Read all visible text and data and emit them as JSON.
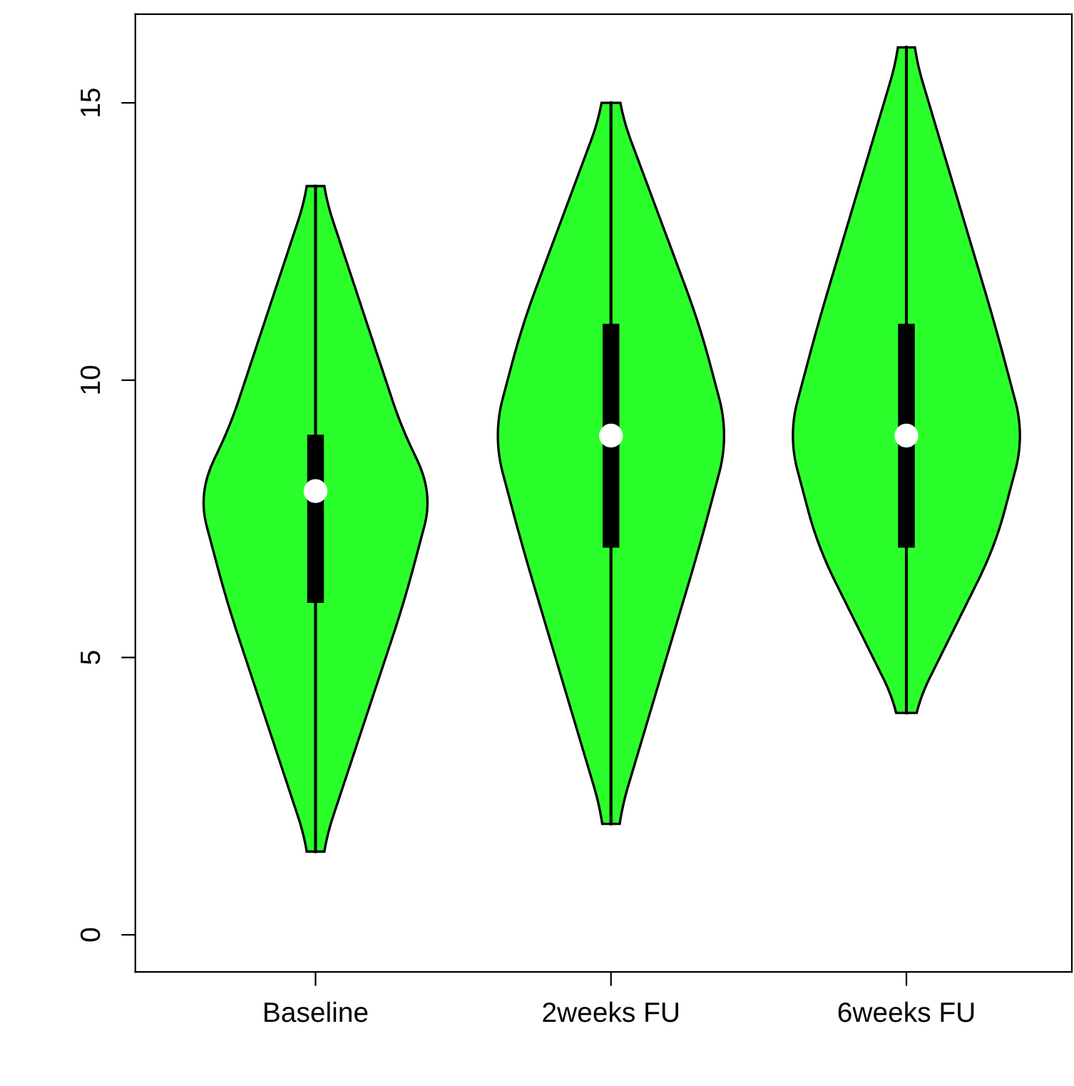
{
  "chart_data": {
    "type": "box",
    "categories": [
      "Baseline",
      "2weeks FU",
      "6weeks FU"
    ],
    "boxes": [
      {
        "low": 1.5,
        "q1": 6,
        "median": 8,
        "q3": 9,
        "high": 13.5
      },
      {
        "low": 2,
        "q1": 7,
        "median": 9,
        "q3": 11,
        "high": 15
      },
      {
        "low": 4,
        "q1": 7,
        "median": 9,
        "q3": 11,
        "high": 16
      }
    ],
    "color": "#000000",
    "ylim": [
      -0.67,
      16.6
    ],
    "yticks": [
      0,
      5,
      10,
      15
    ],
    "grid": false
  }
}
